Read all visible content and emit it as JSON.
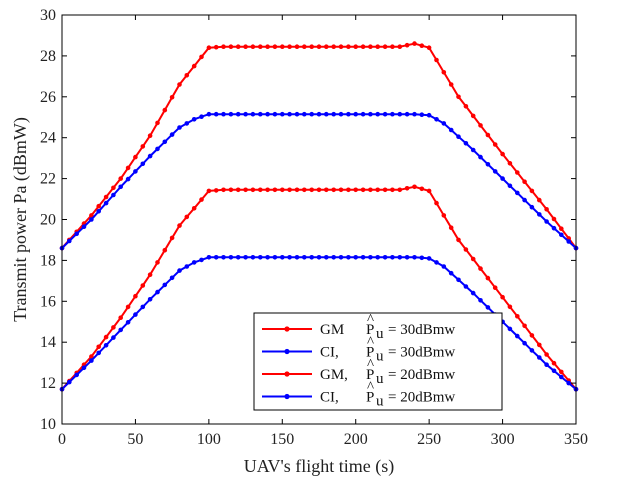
{
  "chart_data": {
    "type": "line",
    "xlabel": "UAV's flight time (s)",
    "ylabel": "Transmit power Pa  (dBmW)",
    "xlim": [
      0,
      350
    ],
    "ylim": [
      10,
      30
    ],
    "xticks": [
      0,
      50,
      100,
      150,
      200,
      250,
      300,
      350
    ],
    "yticks": [
      10,
      12,
      14,
      16,
      18,
      20,
      22,
      24,
      26,
      28,
      30
    ],
    "grid": false,
    "legend_position": "bottom-right",
    "series": [
      {
        "name": "GM,  P̂u = 30dBmw",
        "method": "GM",
        "pu_value": "= 30dBmw",
        "color": "#ff0000",
        "x": [
          0,
          20,
          40,
          60,
          80,
          100,
          110,
          150,
          200,
          230,
          240,
          250,
          270,
          300,
          330,
          350
        ],
        "y": [
          18.6,
          20.2,
          22.0,
          24.1,
          26.6,
          28.4,
          28.45,
          28.45,
          28.45,
          28.45,
          28.6,
          28.4,
          26.0,
          23.2,
          20.5,
          18.6
        ]
      },
      {
        "name": "CI,   P̂u = 30dBmw",
        "method": "CI,",
        "pu_value": "= 30dBmw",
        "color": "#0000ff",
        "x": [
          0,
          20,
          40,
          60,
          80,
          90,
          100,
          150,
          200,
          240,
          250,
          260,
          280,
          300,
          330,
          350
        ],
        "y": [
          18.6,
          20.0,
          21.6,
          23.1,
          24.5,
          24.9,
          25.15,
          25.15,
          25.15,
          25.15,
          25.1,
          24.7,
          23.4,
          22.0,
          19.9,
          18.6
        ]
      },
      {
        "name": "GM,  P̂u = 20dBmw",
        "method": "GM,",
        "pu_value": "= 20dBmw",
        "color": "#ff0000",
        "x": [
          0,
          20,
          40,
          60,
          80,
          100,
          110,
          150,
          200,
          230,
          240,
          250,
          270,
          300,
          330,
          350
        ],
        "y": [
          11.7,
          13.3,
          15.2,
          17.3,
          19.7,
          21.4,
          21.45,
          21.45,
          21.45,
          21.45,
          21.6,
          21.4,
          19.0,
          16.2,
          13.4,
          11.7
        ]
      },
      {
        "name": "CI,   P̂u = 20dBmw",
        "method": "CI,",
        "pu_value": "= 20dBmw",
        "color": "#0000ff",
        "x": [
          0,
          20,
          40,
          60,
          80,
          90,
          100,
          150,
          200,
          240,
          250,
          260,
          280,
          300,
          330,
          350
        ],
        "y": [
          11.7,
          13.1,
          14.6,
          16.1,
          17.5,
          17.9,
          18.15,
          18.15,
          18.15,
          18.15,
          18.1,
          17.7,
          16.4,
          15.0,
          12.9,
          11.7
        ]
      }
    ]
  }
}
